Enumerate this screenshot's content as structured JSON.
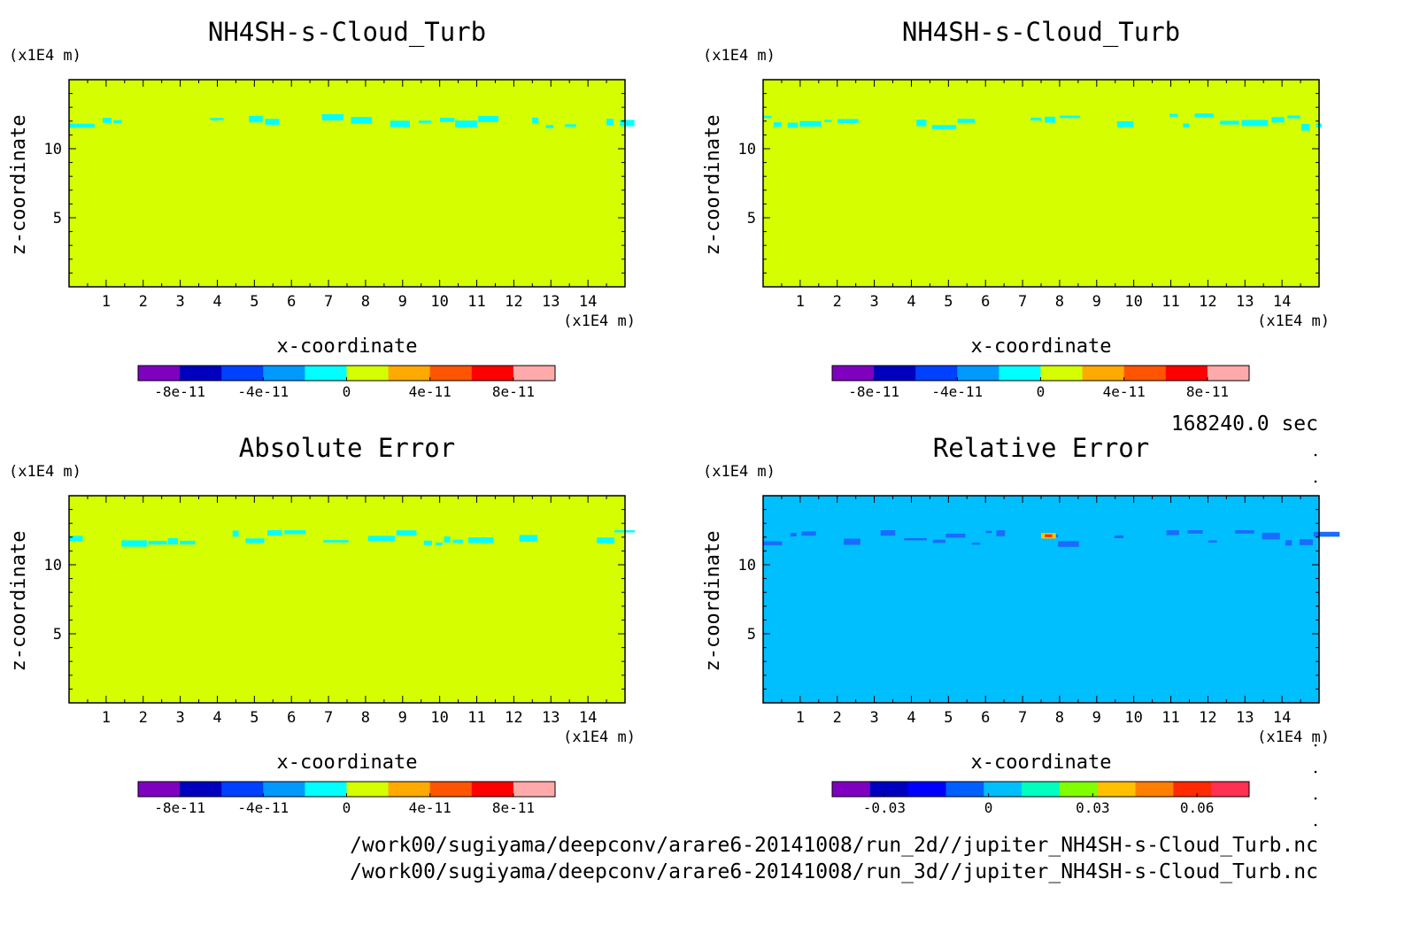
{
  "time_label": "168240.0 sec",
  "footer": {
    "path_2d": "/work00/sugiyama/deepconv/arare6-20141008/run_2d//jupiter_NH4SH-s-Cloud_Turb.nc",
    "path_3d": "/work00/sugiyama/deepconv/arare6-20141008/run_3d//jupiter_NH4SH-s-Cloud_Turb.nc"
  },
  "colors": {
    "background": "#d5ff00",
    "cloud": "#00ffff",
    "relative_background": "#00bfff",
    "relative_cloud": "#1a6bff",
    "axis": "#000000"
  },
  "chart_data": [
    {
      "type": "heatmap",
      "title": "NH4SH-s-Cloud_Turb",
      "xlabel": "x-coordinate",
      "ylabel": "z-coordinate",
      "x_unit": "(x1E4 m)",
      "y_unit": "(x1E4 m)",
      "xlim": [
        0,
        15
      ],
      "ylim": [
        0,
        15
      ],
      "x_ticks": [
        1,
        2,
        3,
        4,
        5,
        6,
        7,
        8,
        9,
        10,
        11,
        12,
        13,
        14
      ],
      "y_ticks": [
        5,
        10
      ],
      "background_value": 0,
      "cloud_layer": {
        "z_range": [
          11.6,
          12.5
        ],
        "x_range": [
          0,
          15
        ],
        "value_sign": "small negative"
      },
      "colorbar": {
        "colors": [
          "#7f00bf",
          "#0000bf",
          "#0040ff",
          "#0099ff",
          "#00ffff",
          "#d5ff00",
          "#ffaa00",
          "#ff5500",
          "#ff0000",
          "#ffaaaa"
        ],
        "range": [
          -1e-10,
          1e-10
        ],
        "tick_values": [
          -8e-11,
          -4e-11,
          0,
          4e-11,
          8e-11
        ],
        "tick_labels": [
          "-8e-11",
          "-4e-11",
          "0",
          "4e-11",
          "8e-11"
        ]
      }
    },
    {
      "type": "heatmap",
      "title": "NH4SH-s-Cloud_Turb",
      "xlabel": "x-coordinate",
      "ylabel": "z-coordinate",
      "x_unit": "(x1E4 m)",
      "y_unit": "(x1E4 m)",
      "xlim": [
        0,
        15
      ],
      "ylim": [
        0,
        15
      ],
      "x_ticks": [
        1,
        2,
        3,
        4,
        5,
        6,
        7,
        8,
        9,
        10,
        11,
        12,
        13,
        14
      ],
      "y_ticks": [
        5,
        10
      ],
      "background_value": 0,
      "cloud_layer": {
        "z_range": [
          11.5,
          12.6
        ],
        "x_range": [
          0,
          15
        ],
        "value_sign": "small negative"
      },
      "colorbar": {
        "colors": [
          "#7f00bf",
          "#0000bf",
          "#0040ff",
          "#0099ff",
          "#00ffff",
          "#d5ff00",
          "#ffaa00",
          "#ff5500",
          "#ff0000",
          "#ffaaaa"
        ],
        "range": [
          -1e-10,
          1e-10
        ],
        "tick_values": [
          -8e-11,
          -4e-11,
          0,
          4e-11,
          8e-11
        ],
        "tick_labels": [
          "-8e-11",
          "-4e-11",
          "0",
          "4e-11",
          "8e-11"
        ]
      }
    },
    {
      "type": "heatmap",
      "title": "Absolute Error",
      "xlabel": "x-coordinate",
      "ylabel": "z-coordinate",
      "x_unit": "(x1E4 m)",
      "y_unit": "(x1E4 m)",
      "xlim": [
        0,
        15
      ],
      "ylim": [
        0,
        15
      ],
      "x_ticks": [
        1,
        2,
        3,
        4,
        5,
        6,
        7,
        8,
        9,
        10,
        11,
        12,
        13,
        14
      ],
      "y_ticks": [
        5,
        10
      ],
      "background_value": 0,
      "cloud_layer": {
        "z_range": [
          11.5,
          12.5
        ],
        "x_range": [
          0,
          15
        ],
        "value_sign": "small negative"
      },
      "colorbar": {
        "colors": [
          "#7f00bf",
          "#0000bf",
          "#0040ff",
          "#0099ff",
          "#00ffff",
          "#d5ff00",
          "#ffaa00",
          "#ff5500",
          "#ff0000",
          "#ffaaaa"
        ],
        "range": [
          -1e-10,
          1e-10
        ],
        "tick_values": [
          -8e-11,
          -4e-11,
          0,
          4e-11,
          8e-11
        ],
        "tick_labels": [
          "-8e-11",
          "-4e-11",
          "0",
          "4e-11",
          "8e-11"
        ]
      }
    },
    {
      "type": "heatmap",
      "title": "Relative Error",
      "xlabel": "x-coordinate",
      "ylabel": "z-coordinate",
      "x_unit": "(x1E4 m)",
      "y_unit": "(x1E4 m)",
      "xlim": [
        0,
        15
      ],
      "ylim": [
        0,
        15
      ],
      "x_ticks": [
        1,
        2,
        3,
        4,
        5,
        6,
        7,
        8,
        9,
        10,
        11,
        12,
        13,
        14
      ],
      "y_ticks": [
        5,
        10
      ],
      "background_value": 0,
      "cloud_layer": {
        "z_range": [
          11.5,
          12.5
        ],
        "x_range": [
          0,
          15
        ],
        "value_sign": "negative, with small positive peak near x=7.7"
      },
      "colorbar": {
        "colors": [
          "#7f00bf",
          "#0000bf",
          "#0000ff",
          "#0060ff",
          "#00bfff",
          "#00ffbf",
          "#7fff00",
          "#ffc000",
          "#ff7f00",
          "#ff2a00",
          "#ff3050"
        ],
        "range": [
          -0.045,
          0.075
        ],
        "tick_values": [
          -0.03,
          0,
          0.03,
          0.06
        ],
        "tick_labels": [
          "-0.03",
          "0",
          "0.03",
          "0.06"
        ]
      }
    }
  ]
}
